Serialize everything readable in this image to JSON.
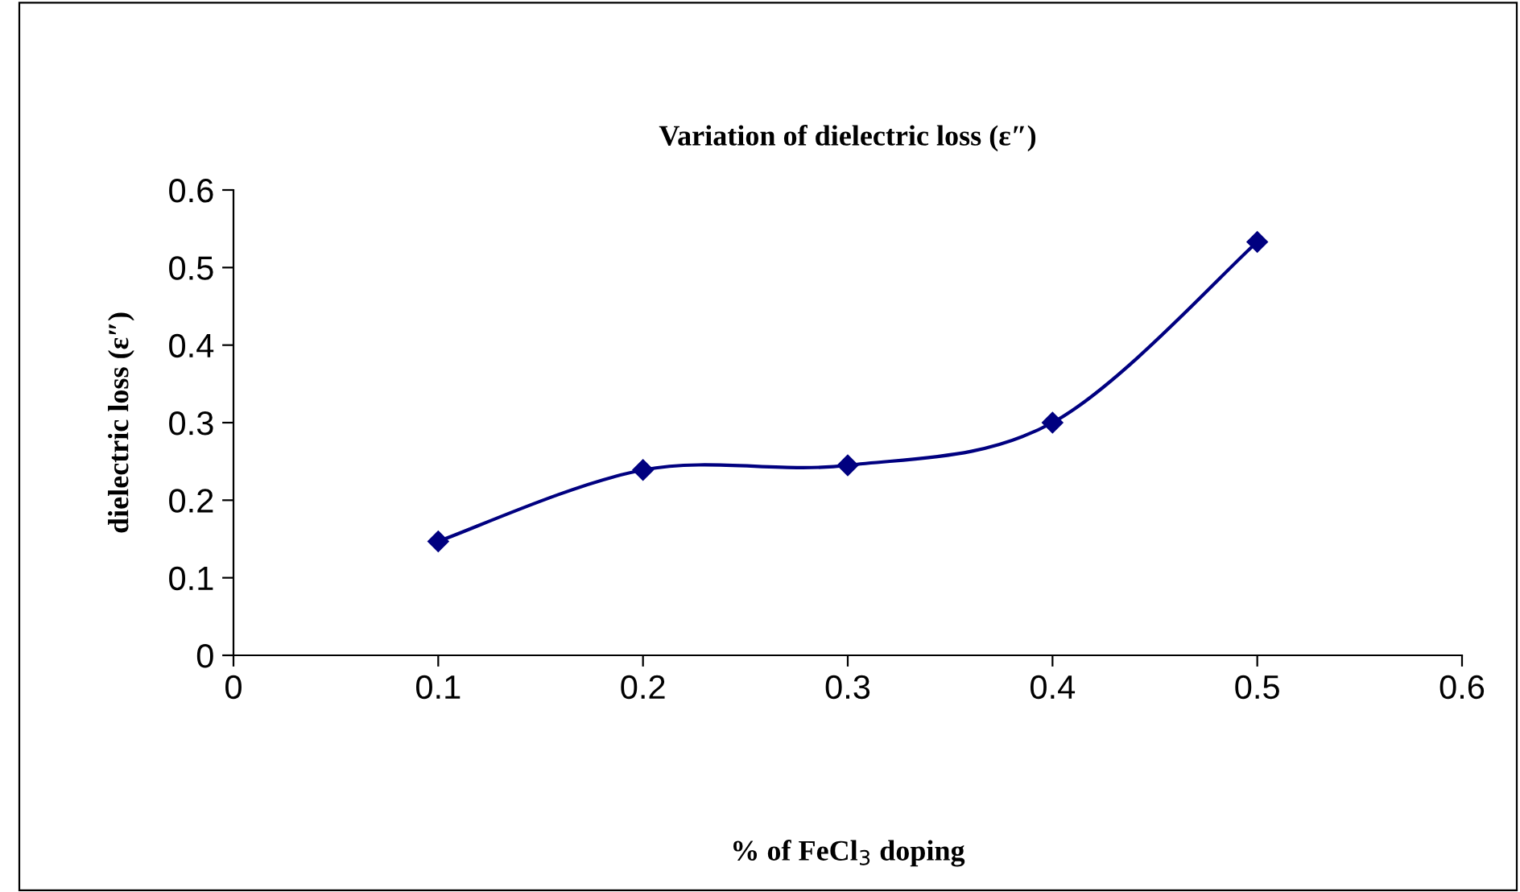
{
  "chart_data": {
    "type": "line",
    "title": "Variation of dielectric loss (ε″)",
    "xlabel": "% of FeCl$_{3}$ doping",
    "ylabel": "dielectric loss (ε″)",
    "x": [
      0.1,
      0.2,
      0.3,
      0.4,
      0.5
    ],
    "series": [
      {
        "color": "#000080",
        "values": [
          0.147,
          0.239,
          0.245,
          0.3,
          0.533
        ]
      }
    ],
    "xlim": [
      0,
      0.6
    ],
    "xticks": [
      0,
      0.1,
      0.2,
      0.3,
      0.4,
      0.5,
      0.6
    ],
    "ylim": [
      0,
      0.6
    ],
    "yticks": [
      0,
      0.1,
      0.2,
      0.3,
      0.4,
      0.5,
      0.6
    ],
    "grid": false,
    "legend": false,
    "marker": "diamond",
    "line_style": "solid"
  }
}
